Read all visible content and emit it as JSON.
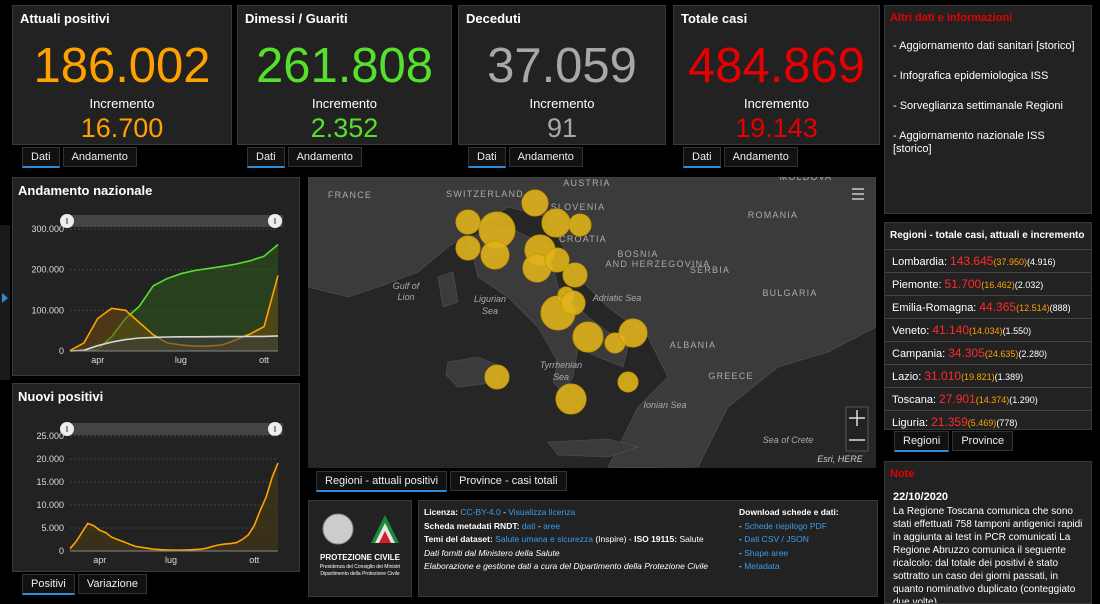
{
  "cards": [
    {
      "title": "Attuali positivi",
      "value": "186.002",
      "increment_label": "Incremento",
      "increment": "16.700",
      "color": "#ffa200",
      "tabs": [
        "Dati",
        "Andamento"
      ]
    },
    {
      "title": "Dimessi / Guariti",
      "value": "261.808",
      "increment_label": "Incremento",
      "increment": "2.352",
      "color": "#56e02b",
      "tabs": [
        "Dati",
        "Andamento"
      ]
    },
    {
      "title": "Deceduti",
      "value": "37.059",
      "increment_label": "Incremento",
      "increment": "91",
      "color": "#a8a8a8",
      "tabs": [
        "Dati",
        "Andamento"
      ]
    },
    {
      "title": "Totale casi",
      "value": "484.869",
      "increment_label": "Incremento",
      "increment": "19.143",
      "color": "#e60000",
      "tabs": [
        "Dati",
        "Andamento"
      ]
    }
  ],
  "info": {
    "title": "Altri dati e informazioni",
    "items": [
      "- Aggiornamento dati sanitari [storico]",
      "- Infografica epidemiologica ISS",
      "- Sorveglianza settimanale Regioni",
      "- Aggiornamento nazionale ISS [storico]"
    ]
  },
  "regions": {
    "title": "Regioni - totale casi, attuali e incremento",
    "rows": [
      [
        "Lombardia:",
        "143.645",
        "(37.950)",
        "(4.916)"
      ],
      [
        "Piemonte:",
        "51.700",
        "(16.462)",
        "(2.032)"
      ],
      [
        "Emilia-Romagna:",
        "44.365",
        "(12.514)",
        "(888)"
      ],
      [
        "Veneto:",
        "41.140",
        "(14.034)",
        "(1.550)"
      ],
      [
        "Campania:",
        "34.305",
        "(24.635)",
        "(2.280)"
      ],
      [
        "Lazio:",
        "31.010",
        "(19.821)",
        "(1.389)"
      ],
      [
        "Toscana:",
        "27.901",
        "(14.374)",
        "(1.290)"
      ],
      [
        "Liguria:",
        "21.359",
        "(5.469)",
        "(778)"
      ]
    ],
    "tabs": [
      "Regioni",
      "Province"
    ]
  },
  "note": {
    "title": "Note",
    "date": "22/10/2020",
    "text": "La Regione Toscana comunica che sono stati effettuati 758 tamponi antigenici rapidi in aggiunta ai test in PCR comunicati La Regione Abruzzo comunica il seguente ricalcolo: dal totale dei positivi è stato sottratto un caso dei giorni passati, in quanto nominativo duplicato (conteggiato due volte)"
  },
  "charts": [
    {
      "type": "line",
      "title": "Andamento nazionale",
      "categories": [
        null,
        null,
        "apr",
        null,
        null,
        null,
        null,
        null,
        "lug",
        null,
        null,
        null,
        null,
        null,
        "ott",
        null
      ],
      "ylim": [
        0,
        300000
      ],
      "yticks": [
        0,
        {
          "value": 100000,
          "label": "100.000"
        },
        {
          "value": 200000,
          "label": "200.000"
        },
        {
          "value": 300000,
          "label": "300.000"
        }
      ],
      "series": [
        {
          "color": "#56e02b",
          "fill": "#2f5a1e",
          "values": [
            0,
            1000,
            4000,
            35000,
            80000,
            110000,
            160000,
            178000,
            190000,
            198000,
            203000,
            208000,
            214000,
            222000,
            233000,
            261808
          ]
        },
        {
          "color": "#ffa200",
          "fill": "#6b4a10",
          "values": [
            1000,
            20000,
            80000,
            105000,
            100000,
            70000,
            40000,
            20000,
            15000,
            12000,
            12000,
            15000,
            28000,
            42000,
            60000,
            186002
          ]
        },
        {
          "color": "#d8d8d8",
          "fill": "#3c3c3c",
          "values": [
            30,
            1800,
            13000,
            22000,
            28000,
            32000,
            33400,
            34400,
            34800,
            35000,
            35100,
            35400,
            35500,
            35700,
            36000,
            37059
          ]
        }
      ],
      "tabs": []
    },
    {
      "type": "area",
      "title": "Nuovi positivi",
      "categories": [
        null,
        null,
        null,
        null,
        null,
        "apr",
        null,
        null,
        null,
        null,
        null,
        null,
        null,
        null,
        null,
        null,
        null,
        "lug",
        null,
        null,
        null,
        null,
        null,
        null,
        null,
        null,
        null,
        null,
        null,
        null,
        null,
        "ott",
        null,
        null,
        null,
        null
      ],
      "ylim": [
        0,
        25000
      ],
      "yticks": [
        0,
        {
          "value": 5000,
          "label": "5.000"
        },
        {
          "value": 10000,
          "label": "10.000"
        },
        {
          "value": 15000,
          "label": "15.000"
        },
        {
          "value": 20000,
          "label": "20.000"
        },
        {
          "value": 25000,
          "label": "25.000"
        }
      ],
      "series": [
        {
          "color": "#ffa200",
          "fill": "#4a3d10",
          "values": [
            500,
            2000,
            4000,
            6000,
            5500,
            4500,
            4000,
            3000,
            2500,
            2000,
            1500,
            1000,
            800,
            600,
            400,
            300,
            250,
            200,
            180,
            200,
            250,
            300,
            400,
            600,
            1000,
            1300,
            1500,
            1600,
            1800,
            2500,
            3500,
            5500,
            8800,
            11700,
            16000,
            19143
          ]
        }
      ],
      "tabs": [
        "Positivi",
        "Variazione"
      ]
    }
  ],
  "map": {
    "labels": [
      "FRANCE",
      "SWITZERLAND",
      "AUSTRIA",
      "SLOVENIA",
      "CROATIA",
      "BOSNIA",
      "AND HERZEGOVINA",
      "SERBIA",
      "ROMANIA",
      "BULGARIA",
      "MOLDOVA",
      "ALBANIA",
      "GREECE",
      "Gulf of",
      "Lion",
      "Ligurian",
      "Sea",
      "Adriatic Sea",
      "Tyrrhenian",
      "Sea",
      "Ionian Sea",
      "Sea of Crete",
      "Esri, HERE"
    ],
    "tabs": [
      "Regioni - attuali positivi",
      "Province - casi totali"
    ]
  },
  "logo": [
    "PROTEZIONE CIVILE",
    "Presidenza del Consiglio dei Ministri",
    "Dipartimento della Protezione Civile"
  ],
  "sources": {
    "left": [
      [
        {
          "t": "Licenza: ",
          "style": "bold"
        },
        {
          "t": "CC-BY-4.0",
          "style": "link"
        },
        {
          "t": " - "
        },
        {
          "t": "Visualizza licenza",
          "style": "link"
        }
      ],
      [
        {
          "t": "Scheda metadati RNDT: ",
          "style": "bold"
        },
        {
          "t": "dati",
          "style": "link"
        },
        {
          "t": " - "
        },
        {
          "t": "aree",
          "style": "link"
        }
      ],
      [
        {
          "t": "Temi del dataset: ",
          "style": "bold"
        },
        {
          "t": "Salute umana e sicurezza",
          "style": "link"
        },
        {
          "t": " (Inspire) - "
        },
        {
          "t": "ISO 19115: ",
          "style": "bold"
        },
        {
          "t": "Salute"
        }
      ],
      [
        {
          "t": "Dati forniti dal Ministero della Salute",
          "style": "italic"
        }
      ],
      [
        {
          "t": "Elaborazione e gestione dati a cura del Dipartimento della Protezione Civile",
          "style": "italic"
        }
      ]
    ],
    "right": [
      [
        {
          "t": "Download schede e dati:",
          "style": "bold"
        }
      ],
      [
        {
          "t": "- "
        },
        {
          "t": "Schede riepilogo PDF",
          "style": "link"
        }
      ],
      [
        {
          "t": "- "
        },
        {
          "t": "Dati CSV / JSON",
          "style": "link"
        }
      ],
      [
        {
          "t": "- "
        },
        {
          "t": "Shape aree",
          "style": "link"
        }
      ],
      [
        {
          "t": "- "
        },
        {
          "t": "Metadata",
          "style": "link"
        }
      ]
    ]
  }
}
